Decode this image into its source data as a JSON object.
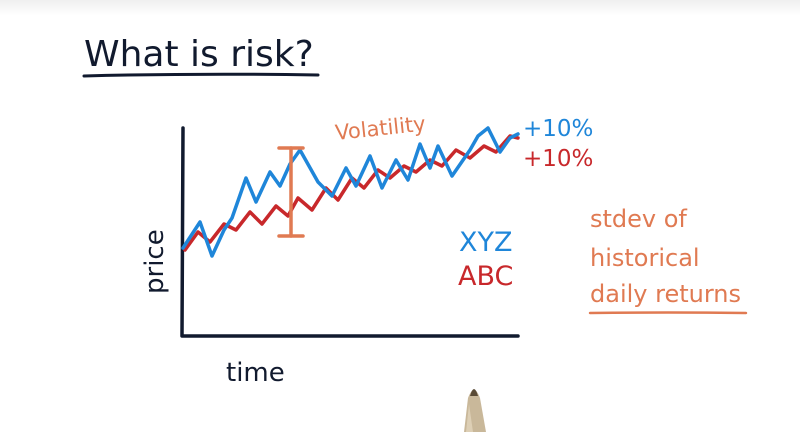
{
  "title": "What is risk?",
  "axes": {
    "ylabel": "price",
    "xlabel": "time"
  },
  "annotation": {
    "volatility_label": "Volatility"
  },
  "returns": {
    "xyz": "+10%",
    "abc": "+10%"
  },
  "legend": {
    "xyz": "XYZ",
    "abc": "ABC"
  },
  "note": {
    "line1": "stdev of",
    "line2": "historical",
    "line3": "daily returns"
  },
  "colors": {
    "ink": "#111a2e",
    "blue": "#1f86d9",
    "red": "#c8282b",
    "orange": "#e07a52"
  }
}
